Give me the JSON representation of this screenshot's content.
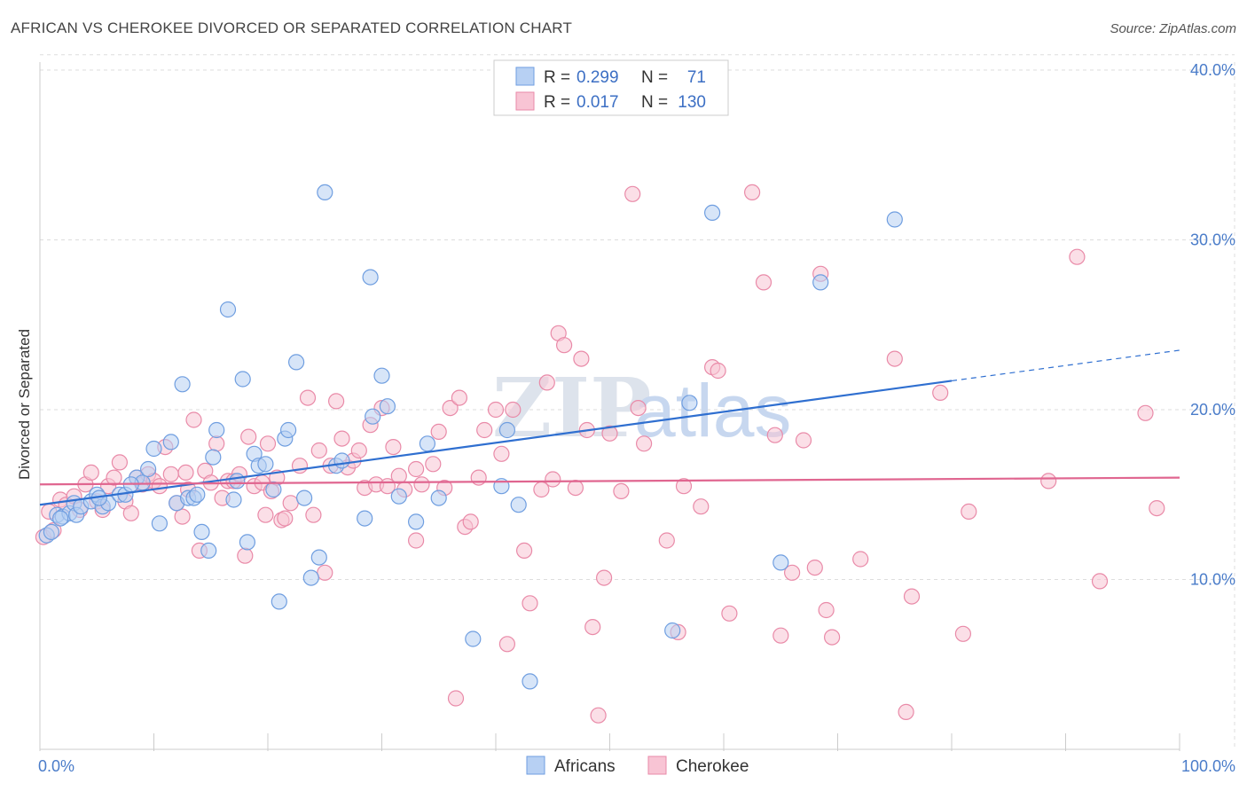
{
  "title": "AFRICAN VS CHEROKEE DIVORCED OR SEPARATED CORRELATION CHART",
  "source": "Source: ZipAtlas.com",
  "watermark": {
    "zip": "ZIP",
    "atlas": "atlas"
  },
  "colors": {
    "africans_fill": "#b7d0f3",
    "africans_stroke": "#6f9ee0",
    "africans_line": "#2f6fd0",
    "cherokee_fill": "#f8c4d4",
    "cherokee_stroke": "#e98aa8",
    "cherokee_line": "#e06690",
    "grid": "#dddddd",
    "tick_text": "#4a7cc9"
  },
  "legend": {
    "africans": {
      "r_label": "R =",
      "r_value": "0.299",
      "n_label": "N =",
      "n_value": "71"
    },
    "cherokee": {
      "r_label": "R =",
      "r_value": "0.017",
      "n_label": "N =",
      "n_value": "130"
    }
  },
  "chart_data": {
    "type": "scatter",
    "title": "AFRICAN VS CHEROKEE DIVORCED OR SEPARATED CORRELATION CHART",
    "xlabel": "",
    "ylabel": "Divorced or Separated",
    "xlim": [
      0,
      100
    ],
    "ylim": [
      0,
      42
    ],
    "x_ticks": [
      {
        "value": 0,
        "label": "0.0%"
      },
      {
        "value": 100,
        "label": "100.0%"
      }
    ],
    "y_ticks": [
      {
        "value": 10,
        "label": "10.0%"
      },
      {
        "value": 20,
        "label": "20.0%"
      },
      {
        "value": 30,
        "label": "30.0%"
      },
      {
        "value": 40,
        "label": "40.0%"
      }
    ],
    "grid": true,
    "legend_position": "top-center",
    "series": [
      {
        "name": "Africans",
        "r": 0.299,
        "n": 71,
        "trend": {
          "x0": 0,
          "y0": 14.4,
          "x1": 80,
          "y1": 21.7,
          "dashed_to_x": 100,
          "dashed_to_y": 23.5
        },
        "points": [
          [
            0.6,
            12.6
          ],
          [
            1.0,
            12.8
          ],
          [
            1.5,
            13.8
          ],
          [
            2.0,
            13.7
          ],
          [
            2.6,
            13.9
          ],
          [
            3.0,
            14.5
          ],
          [
            3.2,
            13.8
          ],
          [
            3.6,
            14.3
          ],
          [
            4.5,
            14.6
          ],
          [
            5.0,
            15.0
          ],
          [
            5.5,
            14.3
          ],
          [
            6.0,
            14.5
          ],
          [
            7.0,
            15.0
          ],
          [
            7.5,
            15.0
          ],
          [
            8.5,
            16.0
          ],
          [
            9.0,
            15.7
          ],
          [
            9.5,
            16.5
          ],
          [
            10.0,
            17.7
          ],
          [
            10.5,
            13.3
          ],
          [
            11.5,
            18.1
          ],
          [
            12.0,
            14.5
          ],
          [
            12.5,
            21.5
          ],
          [
            13.0,
            14.8
          ],
          [
            13.5,
            14.8
          ],
          [
            13.8,
            15.0
          ],
          [
            14.2,
            12.8
          ],
          [
            14.8,
            11.7
          ],
          [
            15.2,
            17.2
          ],
          [
            15.5,
            18.8
          ],
          [
            16.5,
            25.9
          ],
          [
            17.0,
            14.7
          ],
          [
            17.3,
            15.8
          ],
          [
            17.8,
            21.8
          ],
          [
            18.2,
            12.2
          ],
          [
            18.8,
            17.4
          ],
          [
            19.2,
            16.7
          ],
          [
            19.8,
            16.8
          ],
          [
            20.5,
            15.3
          ],
          [
            21.0,
            8.7
          ],
          [
            21.5,
            18.3
          ],
          [
            21.8,
            18.8
          ],
          [
            22.5,
            22.8
          ],
          [
            23.2,
            14.8
          ],
          [
            23.8,
            10.1
          ],
          [
            24.5,
            11.3
          ],
          [
            25.0,
            32.8
          ],
          [
            26.0,
            16.7
          ],
          [
            26.5,
            17.0
          ],
          [
            28.5,
            13.6
          ],
          [
            29.0,
            27.8
          ],
          [
            29.2,
            19.6
          ],
          [
            30.0,
            22.0
          ],
          [
            30.5,
            20.2
          ],
          [
            31.5,
            14.9
          ],
          [
            33.0,
            13.4
          ],
          [
            34.0,
            18.0
          ],
          [
            35.0,
            14.8
          ],
          [
            38.0,
            6.5
          ],
          [
            40.5,
            15.5
          ],
          [
            41.0,
            18.8
          ],
          [
            42.0,
            14.4
          ],
          [
            43.0,
            4.0
          ],
          [
            55.5,
            7.0
          ],
          [
            57.0,
            20.4
          ],
          [
            59.0,
            31.6
          ],
          [
            65.0,
            11.0
          ],
          [
            68.5,
            27.5
          ],
          [
            75.0,
            31.2
          ],
          [
            1.8,
            13.6
          ],
          [
            5.2,
            14.8
          ],
          [
            8.0,
            15.6
          ]
        ]
      },
      {
        "name": "Cherokee",
        "r": 0.017,
        "n": 130,
        "trend": {
          "x0": 0,
          "y0": 15.6,
          "x1": 100,
          "y1": 16.0
        },
        "points": [
          [
            0.3,
            12.5
          ],
          [
            0.8,
            14.0
          ],
          [
            1.2,
            12.9
          ],
          [
            1.8,
            14.7
          ],
          [
            2.3,
            14.4
          ],
          [
            3.0,
            14.9
          ],
          [
            3.5,
            14.1
          ],
          [
            4.0,
            15.6
          ],
          [
            4.5,
            16.3
          ],
          [
            5.0,
            14.6
          ],
          [
            5.5,
            14.1
          ],
          [
            6.0,
            15.5
          ],
          [
            6.5,
            16.0
          ],
          [
            7.0,
            16.9
          ],
          [
            7.5,
            14.6
          ],
          [
            8.0,
            13.9
          ],
          [
            8.5,
            16.0
          ],
          [
            9.0,
            15.6
          ],
          [
            9.5,
            16.2
          ],
          [
            10.0,
            15.8
          ],
          [
            10.5,
            15.5
          ],
          [
            11.0,
            17.8
          ],
          [
            11.5,
            16.2
          ],
          [
            12.0,
            14.5
          ],
          [
            12.5,
            13.7
          ],
          [
            13.0,
            15.3
          ],
          [
            13.5,
            19.4
          ],
          [
            14.0,
            11.7
          ],
          [
            14.5,
            16.4
          ],
          [
            15.0,
            15.7
          ],
          [
            15.5,
            18.0
          ],
          [
            16.0,
            14.8
          ],
          [
            16.5,
            15.8
          ],
          [
            17.0,
            15.8
          ],
          [
            17.5,
            16.2
          ],
          [
            18.0,
            11.4
          ],
          [
            18.3,
            18.4
          ],
          [
            18.8,
            15.5
          ],
          [
            19.5,
            15.7
          ],
          [
            19.8,
            13.8
          ],
          [
            20.3,
            15.2
          ],
          [
            20.8,
            16.0
          ],
          [
            21.2,
            13.5
          ],
          [
            21.5,
            13.6
          ],
          [
            22.0,
            14.5
          ],
          [
            22.8,
            16.7
          ],
          [
            23.5,
            20.7
          ],
          [
            24.0,
            13.8
          ],
          [
            24.5,
            17.6
          ],
          [
            25.0,
            10.4
          ],
          [
            25.5,
            16.7
          ],
          [
            26.0,
            20.5
          ],
          [
            26.5,
            18.3
          ],
          [
            27.0,
            16.6
          ],
          [
            27.5,
            17.0
          ],
          [
            28.0,
            17.6
          ],
          [
            28.5,
            15.4
          ],
          [
            29.0,
            19.1
          ],
          [
            29.5,
            15.6
          ],
          [
            30.0,
            20.1
          ],
          [
            30.5,
            15.5
          ],
          [
            31.0,
            17.8
          ],
          [
            31.5,
            16.1
          ],
          [
            32.0,
            15.3
          ],
          [
            33.0,
            12.3
          ],
          [
            33.5,
            15.6
          ],
          [
            34.5,
            16.8
          ],
          [
            35.0,
            18.7
          ],
          [
            35.5,
            15.4
          ],
          [
            36.0,
            20.1
          ],
          [
            36.8,
            20.7
          ],
          [
            37.3,
            13.1
          ],
          [
            37.8,
            13.4
          ],
          [
            38.5,
            16.0
          ],
          [
            39.0,
            18.8
          ],
          [
            40.0,
            20.0
          ],
          [
            40.5,
            17.4
          ],
          [
            41.0,
            6.2
          ],
          [
            41.5,
            20.0
          ],
          [
            42.5,
            11.7
          ],
          [
            43.0,
            8.6
          ],
          [
            44.5,
            21.6
          ],
          [
            45.0,
            15.9
          ],
          [
            45.5,
            24.5
          ],
          [
            46.0,
            23.8
          ],
          [
            47.0,
            15.4
          ],
          [
            47.5,
            23.0
          ],
          [
            48.0,
            18.8
          ],
          [
            48.5,
            7.2
          ],
          [
            49.0,
            2.0
          ],
          [
            49.5,
            10.1
          ],
          [
            50.0,
            18.6
          ],
          [
            51.0,
            15.2
          ],
          [
            52.0,
            32.7
          ],
          [
            52.5,
            20.1
          ],
          [
            53.0,
            18.0
          ],
          [
            55.0,
            12.3
          ],
          [
            56.0,
            6.9
          ],
          [
            56.5,
            15.5
          ],
          [
            58.0,
            14.3
          ],
          [
            59.0,
            22.5
          ],
          [
            59.5,
            22.3
          ],
          [
            60.5,
            8.0
          ],
          [
            62.5,
            32.8
          ],
          [
            63.5,
            27.5
          ],
          [
            64.5,
            18.5
          ],
          [
            65.0,
            6.7
          ],
          [
            66.0,
            10.4
          ],
          [
            67.0,
            18.2
          ],
          [
            68.0,
            10.7
          ],
          [
            68.5,
            28.0
          ],
          [
            69.0,
            8.2
          ],
          [
            69.5,
            6.6
          ],
          [
            72.0,
            11.2
          ],
          [
            75.0,
            23.0
          ],
          [
            76.0,
            2.2
          ],
          [
            76.5,
            9.0
          ],
          [
            79.0,
            21.0
          ],
          [
            81.0,
            6.8
          ],
          [
            81.5,
            14.0
          ],
          [
            88.5,
            15.8
          ],
          [
            91.0,
            29.0
          ],
          [
            93.0,
            9.9
          ],
          [
            97.0,
            19.8
          ],
          [
            98.0,
            14.2
          ],
          [
            36.5,
            3.0
          ],
          [
            33.0,
            16.5
          ],
          [
            44.0,
            15.3
          ],
          [
            12.8,
            16.3
          ],
          [
            20.0,
            18.0
          ]
        ]
      }
    ]
  },
  "bottom_legend": {
    "africans": "Africans",
    "cherokee": "Cherokee"
  }
}
